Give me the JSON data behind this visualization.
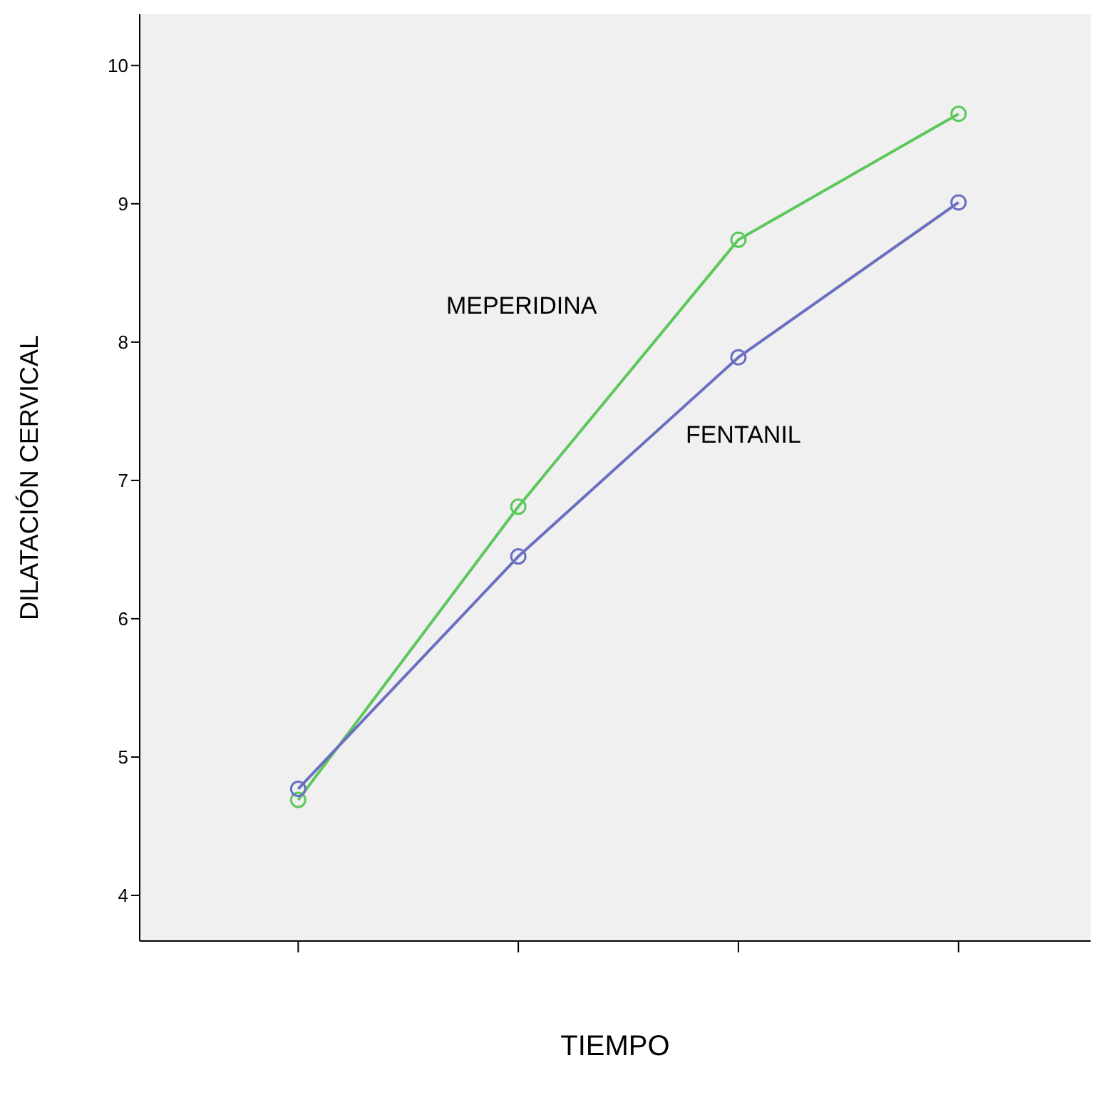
{
  "chart_data": {
    "type": "line",
    "xlabel": "TIEMPO",
    "ylabel": "DILATACIÓN CERVICAL",
    "categories": [
      null,
      null,
      null,
      null
    ],
    "ylim": [
      3.67,
      10.37
    ],
    "yticks": [
      4,
      5,
      6,
      7,
      8,
      9,
      10
    ],
    "marker": "circle",
    "legend": false,
    "series": [
      {
        "name": "MEPERIDINA",
        "color": "#5cc85c",
        "values": [
          4.69,
          6.81,
          8.74,
          9.65
        ]
      },
      {
        "name": "FENTANIL",
        "color": "#6a6fc2",
        "values": [
          4.77,
          6.45,
          7.89,
          9.01
        ]
      }
    ]
  }
}
